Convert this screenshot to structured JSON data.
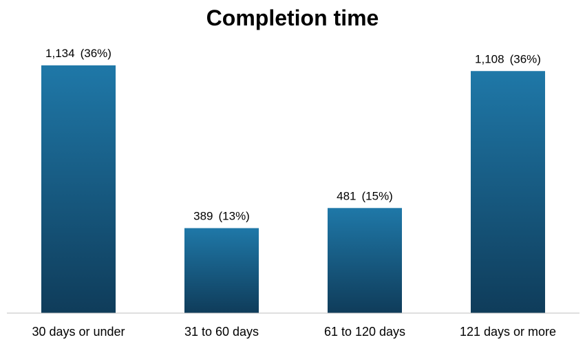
{
  "chart_data": {
    "type": "bar",
    "title": "Completion time",
    "xlabel": "",
    "ylabel": "",
    "categories": [
      "30 days or under",
      "31 to 60 days",
      "61 to 120 days",
      "121 days or more"
    ],
    "values": [
      1134,
      389,
      481,
      1108
    ],
    "value_labels": [
      "1,134",
      "389",
      "481",
      "1,108"
    ],
    "percent_labels": [
      "(36%)",
      "(13%)",
      "(15%)",
      "(36%)"
    ],
    "ylim": [
      0,
      1260
    ],
    "grid": false,
    "legend": "none",
    "colors": {
      "bar_top": "#1f78a8",
      "bar_bottom": "#0f3c5a",
      "axis": "#bfbfbf"
    }
  }
}
